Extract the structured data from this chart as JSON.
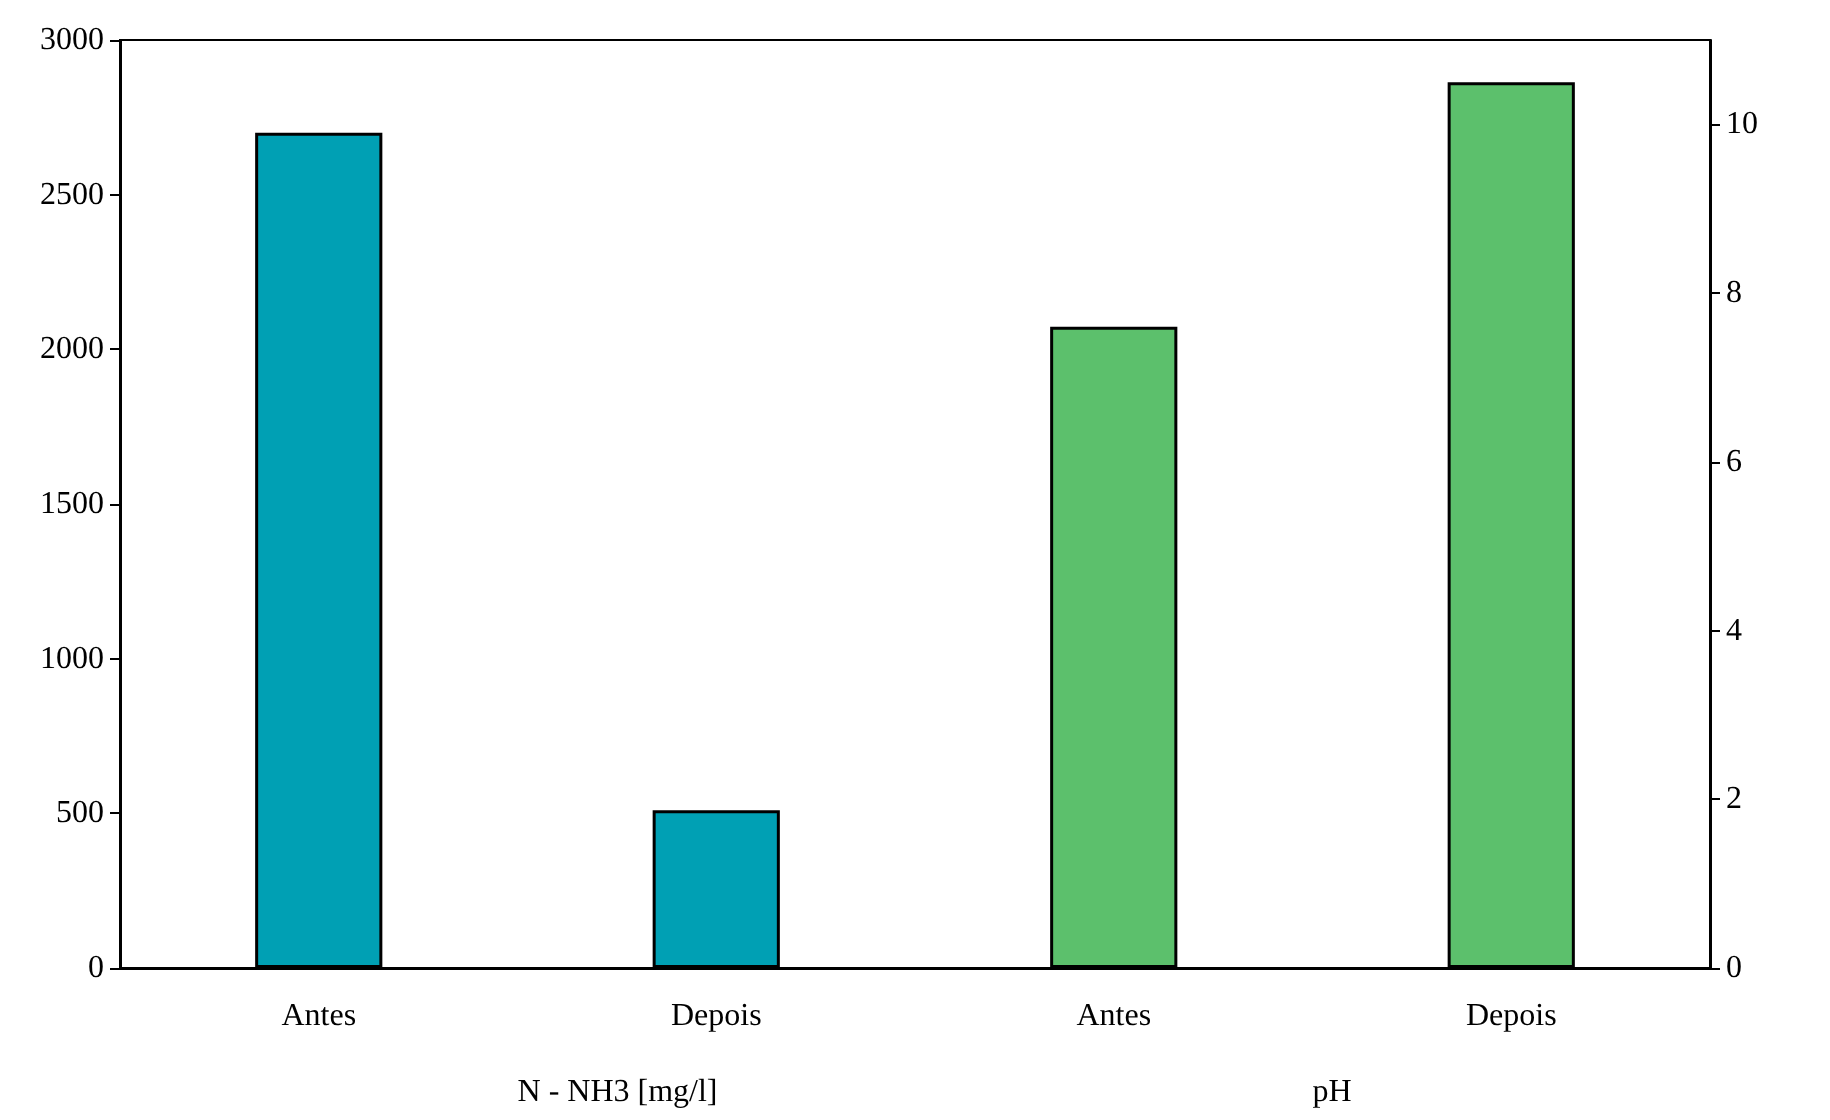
{
  "chart_data": {
    "type": "bar",
    "categories": [
      "Antes",
      "Depois",
      "Antes",
      "Depois"
    ],
    "series": [
      {
        "color": "#00a0b4",
        "values": [
          2700,
          510,
          null,
          null
        ],
        "axis": "y"
      },
      {
        "color": "#5cc06c",
        "values": [
          null,
          null,
          7.6,
          10.5
        ],
        "axis": "y2"
      }
    ],
    "ylim": [
      0,
      3000
    ],
    "yticks": [
      0,
      500,
      1000,
      1500,
      2000,
      2500,
      3000
    ],
    "y2lim": [
      0,
      11
    ],
    "y2ticks": [
      0,
      2,
      4,
      6,
      8,
      10
    ],
    "annotations": [
      "N - NH3 [mg/l]",
      "pH"
    ],
    "grid": false
  }
}
